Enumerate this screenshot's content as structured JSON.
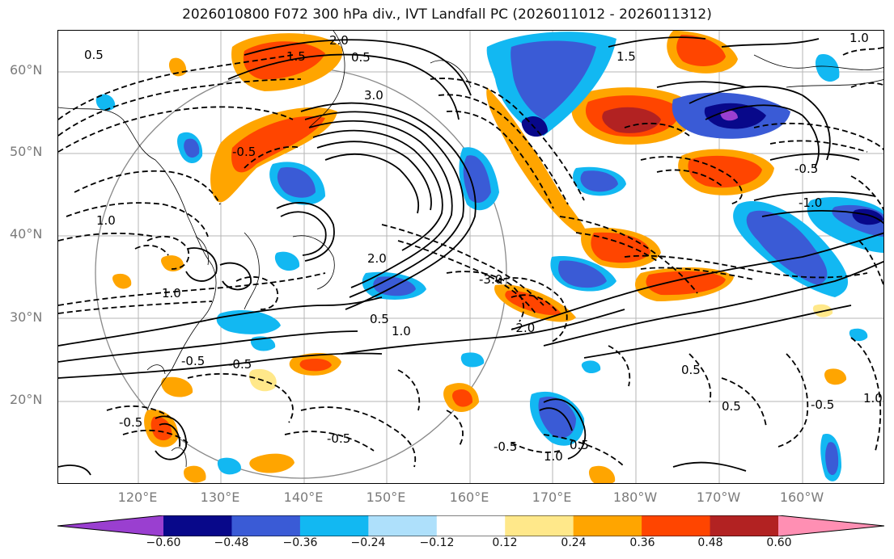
{
  "title": "2026010800 F072 300 hPa div., IVT Landfall PC (2026011012 - 2026011312)",
  "map": {
    "lat_labels": [
      "60°N",
      "50°N",
      "40°N",
      "30°N",
      "20°N"
    ],
    "lon_labels": [
      "120°E",
      "130°E",
      "140°E",
      "150°E",
      "160°E",
      "170°E",
      "180°W",
      "170°W",
      "160°W"
    ],
    "contour_labels": [
      "2.0",
      "1.5",
      "0.5",
      "0.5",
      "1.0",
      "3.0",
      "1.0",
      "-0.5",
      "2.0",
      "-0.5",
      "-0.5",
      "1.5",
      "1.0",
      "-0.5",
      "0.5",
      "-1.0",
      "1.0",
      "-3.0",
      "-2.0",
      "0.5",
      "-0.5",
      "0.5",
      "-0.5",
      "1.0",
      "-0.5",
      "0.5",
      "-0.5",
      "1.0"
    ],
    "field_label": "300 hPa div."
  },
  "colorbar": {
    "ticks": [
      "−0.60",
      "−0.48",
      "−0.36",
      "−0.24",
      "−0.12",
      "0.12",
      "0.24",
      "0.36",
      "0.48",
      "0.60"
    ],
    "colors": [
      "#9a3fd0",
      "#08088a",
      "#3a5bd6",
      "#12b8f2",
      "#aee0fb",
      "#ffffff",
      "#ffe88a",
      "#ffa500",
      "#ff4500",
      "#b22222",
      "#ff8fb3"
    ]
  }
}
